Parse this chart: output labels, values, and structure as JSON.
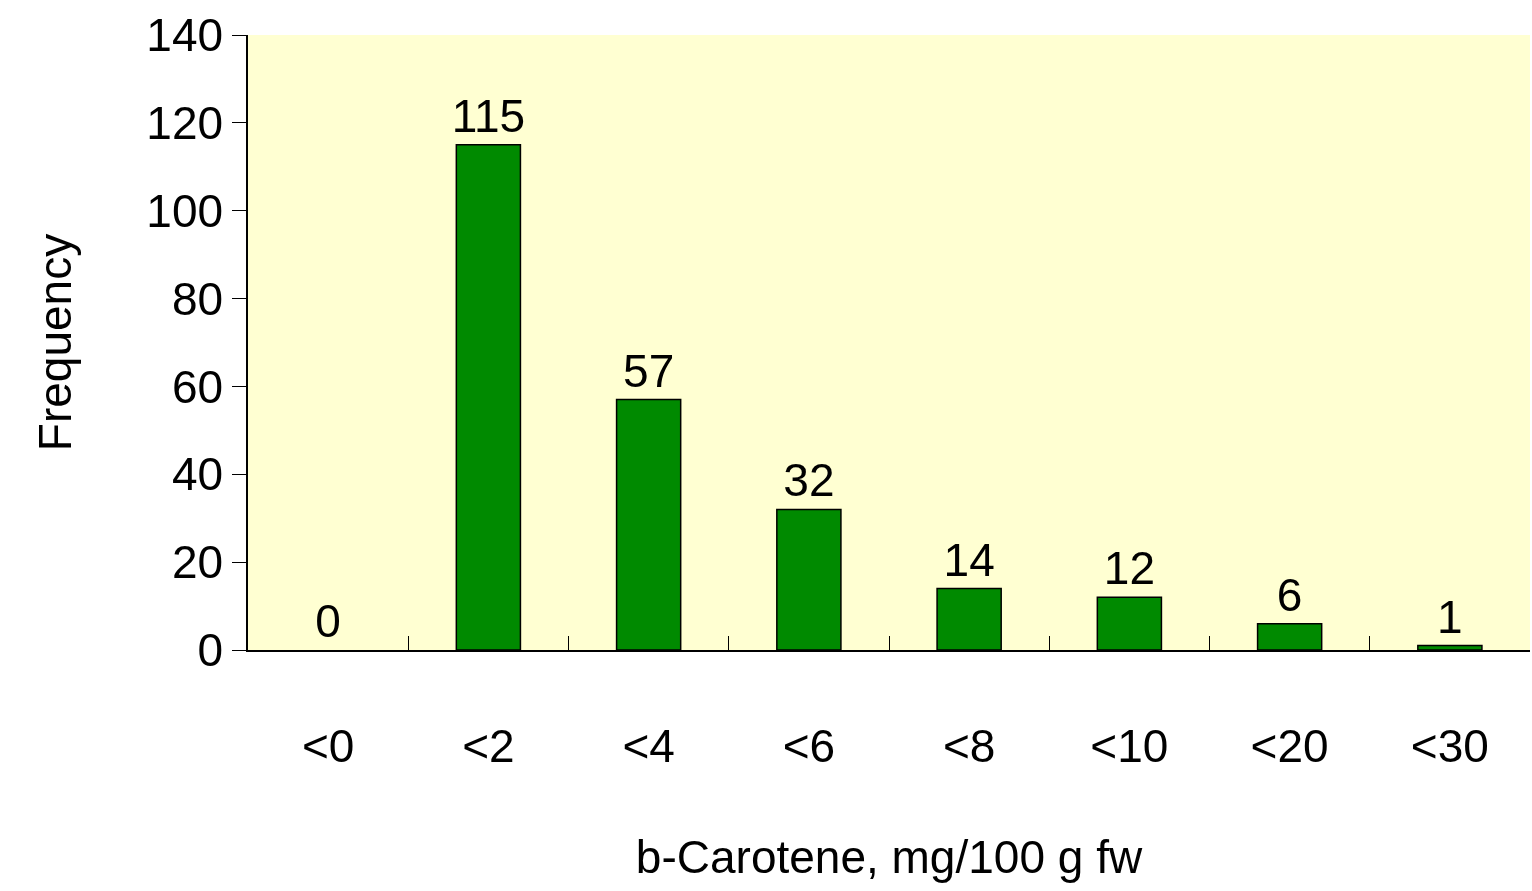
{
  "chart_data": {
    "type": "bar",
    "xlabel": "b-Carotene, mg/100 g fw",
    "ylabel": "Frequency",
    "categories": [
      "<0",
      "<2",
      "<4",
      "<6",
      "<8",
      "<10",
      "<20",
      "<30"
    ],
    "values": [
      0,
      115,
      57,
      32,
      14,
      12,
      6,
      1
    ],
    "color": "#008a00",
    "ylim": [
      0,
      140
    ],
    "yticks": [
      0,
      20,
      40,
      60,
      80,
      100,
      120,
      140
    ],
    "data_labels": true
  }
}
